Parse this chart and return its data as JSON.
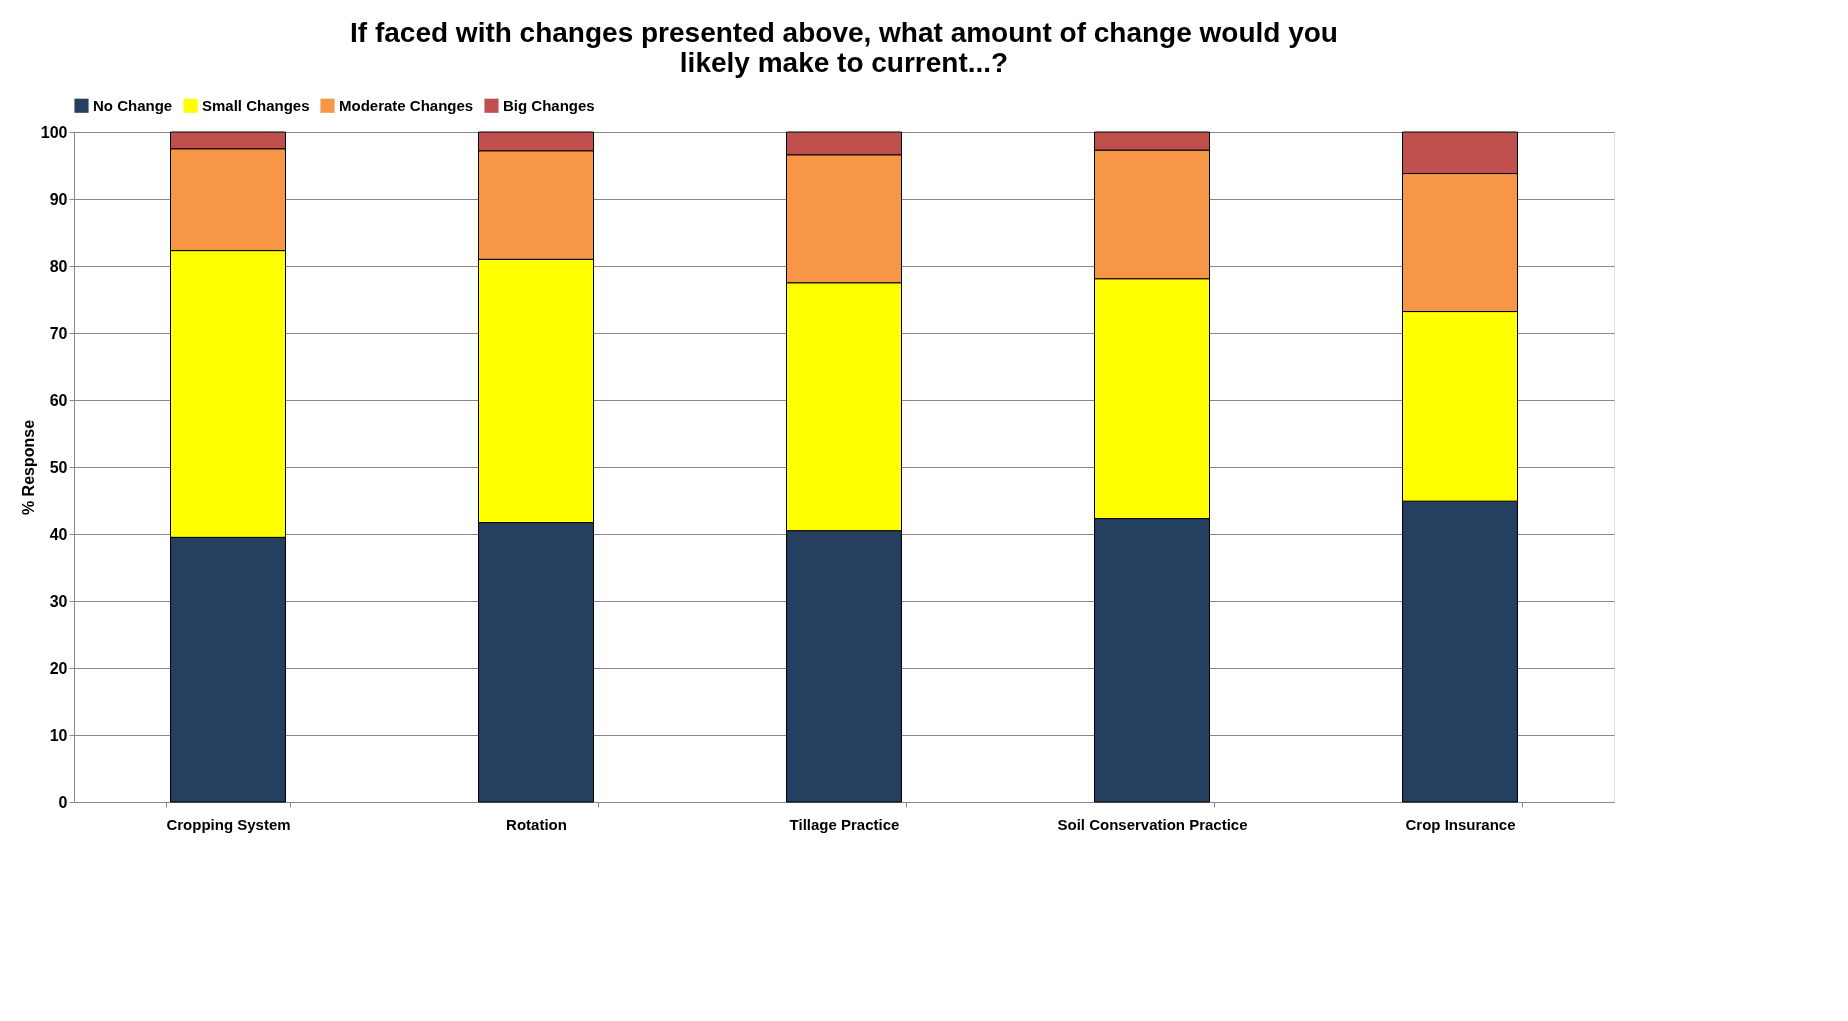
{
  "chart_data": {
    "type": "bar",
    "stacked": true,
    "title": [
      "If faced with changes presented above, what amount of change would you",
      "likely make to current...?"
    ],
    "ylabel": "% Response",
    "categories": [
      "Cropping System",
      "Rotation",
      "Tillage Practice",
      "Soil Conservation Practice",
      "Crop Insurance"
    ],
    "series": [
      {
        "name": "No Change",
        "color": "#243f60",
        "values": [
          39.5,
          41.7,
          40.5,
          42.3,
          44.9
        ]
      },
      {
        "name": "Small Changes",
        "color": "#ffff00",
        "values": [
          42.8,
          39.3,
          37.0,
          35.8,
          28.3
        ]
      },
      {
        "name": "Moderate Changes",
        "color": "#f79646",
        "values": [
          15.2,
          16.2,
          19.1,
          19.2,
          20.6
        ]
      },
      {
        "name": "Big Changes",
        "color": "#c0504d",
        "values": [
          2.5,
          2.8,
          3.4,
          2.7,
          6.2
        ]
      }
    ],
    "ylim": [
      0,
      100
    ],
    "yticks": [
      0,
      10,
      20,
      30,
      40,
      50,
      60,
      70,
      80,
      90,
      100
    ],
    "grid": "y",
    "legend": "top"
  }
}
